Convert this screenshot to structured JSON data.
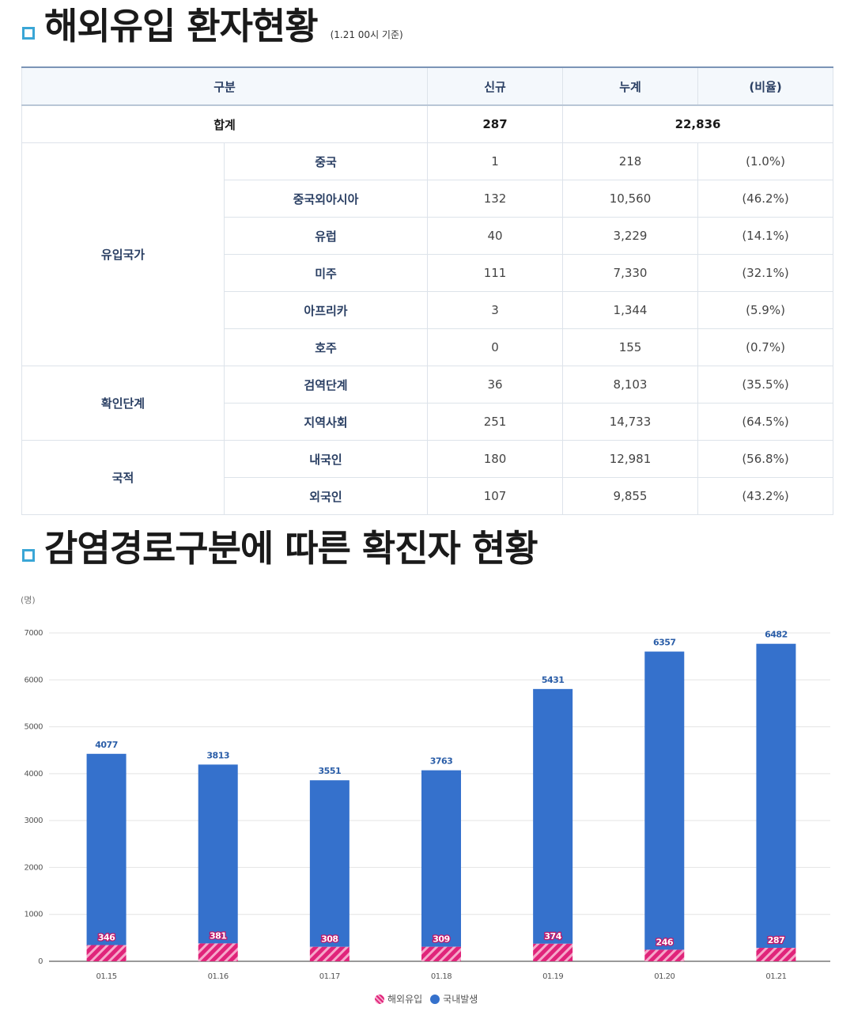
{
  "section1": {
    "title": "해외유입 환자현황",
    "note": "(1.21 00시 기준)"
  },
  "table": {
    "headers": [
      "구분",
      "신규",
      "누계",
      "(비율)"
    ],
    "total": {
      "label": "합계",
      "new": "287",
      "cumulative": "22,836"
    },
    "groups": [
      {
        "name": "유입국가",
        "rows": [
          {
            "label": "중국",
            "new": "1",
            "cumulative": "218",
            "ratio": "(1.0%)"
          },
          {
            "label": "중국외아시아",
            "new": "132",
            "cumulative": "10,560",
            "ratio": "(46.2%)"
          },
          {
            "label": "유럽",
            "new": "40",
            "cumulative": "3,229",
            "ratio": "(14.1%)"
          },
          {
            "label": "미주",
            "new": "111",
            "cumulative": "7,330",
            "ratio": "(32.1%)"
          },
          {
            "label": "아프리카",
            "new": "3",
            "cumulative": "1,344",
            "ratio": "(5.9%)"
          },
          {
            "label": "호주",
            "new": "0",
            "cumulative": "155",
            "ratio": "(0.7%)"
          }
        ]
      },
      {
        "name": "확인단계",
        "rows": [
          {
            "label": "검역단계",
            "new": "36",
            "cumulative": "8,103",
            "ratio": "(35.5%)"
          },
          {
            "label": "지역사회",
            "new": "251",
            "cumulative": "14,733",
            "ratio": "(64.5%)"
          }
        ]
      },
      {
        "name": "국적",
        "rows": [
          {
            "label": "내국인",
            "new": "180",
            "cumulative": "12,981",
            "ratio": "(56.8%)"
          },
          {
            "label": "외국인",
            "new": "107",
            "cumulative": "9,855",
            "ratio": "(43.2%)"
          }
        ]
      }
    ]
  },
  "section2": {
    "title": "감염경로구분에 따른 확진자 현황"
  },
  "chart_data": {
    "type": "bar",
    "stacked": true,
    "ylabel": "(명)",
    "ylim": [
      0,
      7000
    ],
    "yticks": [
      0,
      1000,
      2000,
      3000,
      4000,
      5000,
      6000,
      7000
    ],
    "grid": true,
    "legend_position": "bottom",
    "categories": [
      "01.15",
      "01.16",
      "01.17",
      "01.18",
      "01.19",
      "01.20",
      "01.21"
    ],
    "series": [
      {
        "name": "해외유입",
        "color": "#e0247a",
        "pattern": "hatched",
        "values": [
          346,
          381,
          308,
          309,
          374,
          246,
          287
        ]
      },
      {
        "name": "국내발생",
        "color": "#3571cc",
        "values": [
          4077,
          3813,
          3551,
          3763,
          5431,
          6357,
          6482
        ]
      }
    ]
  }
}
